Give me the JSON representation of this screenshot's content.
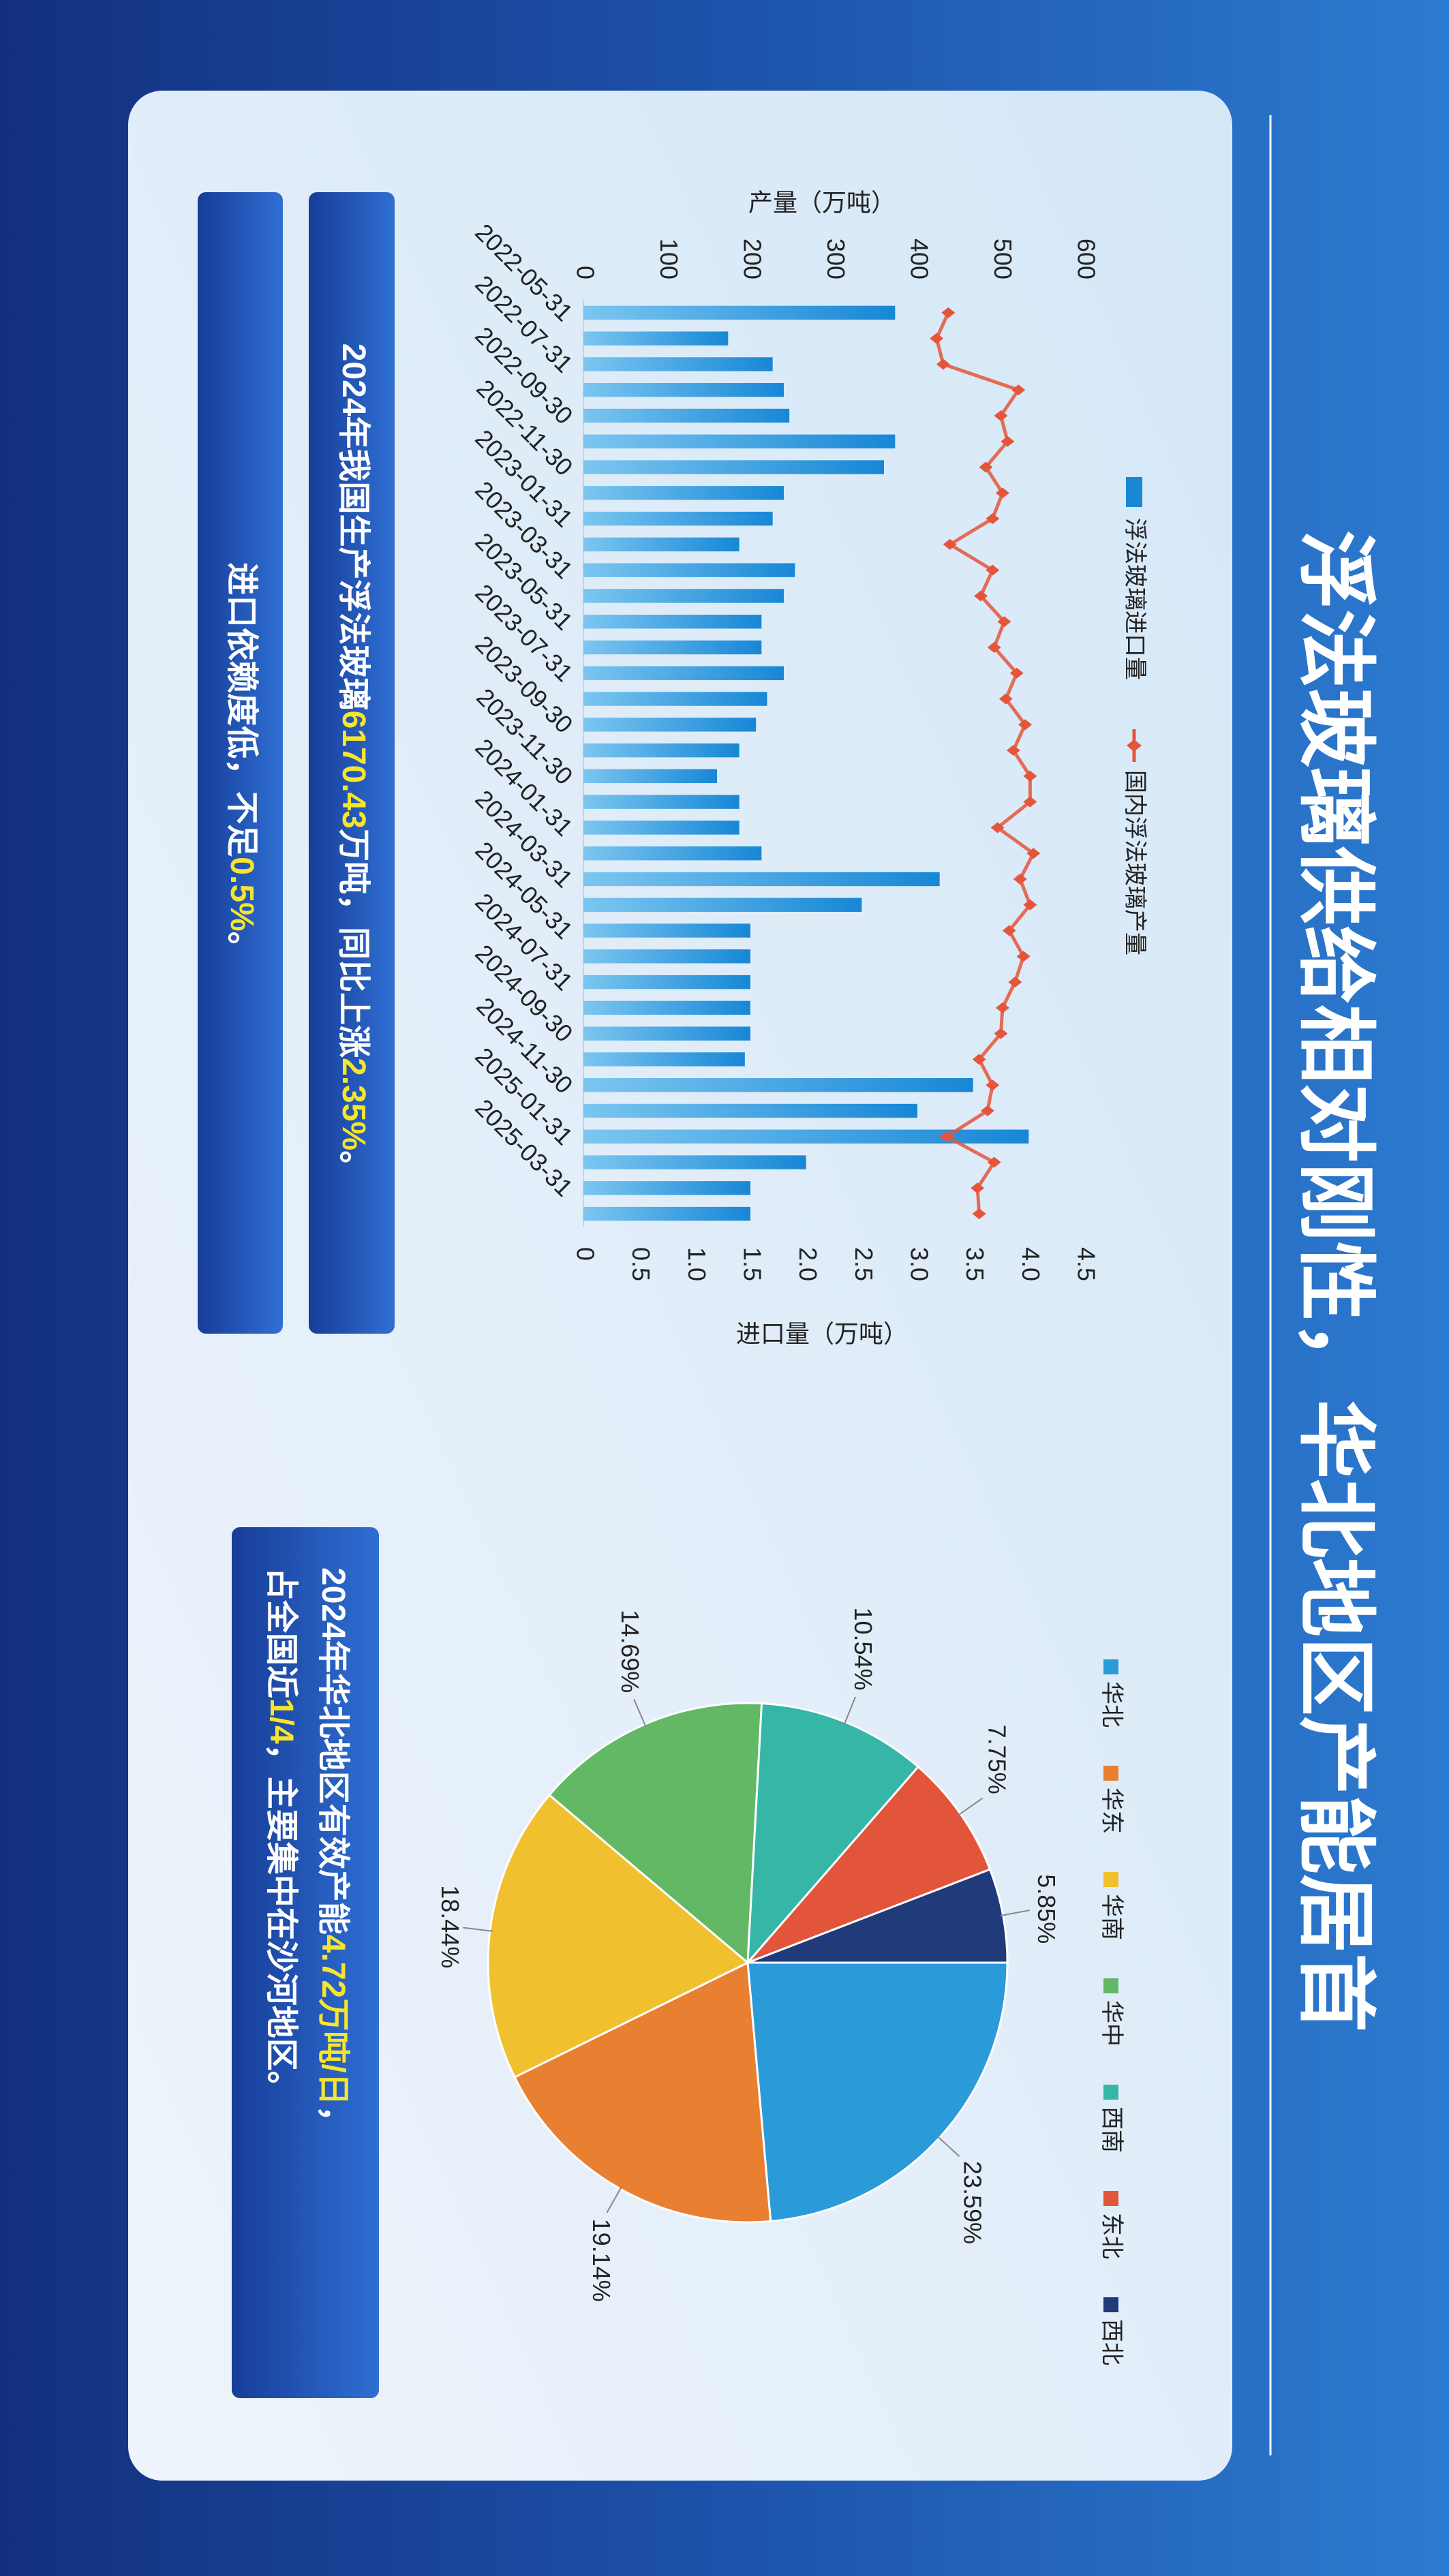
{
  "title": "浮法玻璃供给相对刚性，华北地区产能居首",
  "chart_data": [
    {
      "type": "combo",
      "categories": [
        "2022-05-31",
        null,
        "2022-07-31",
        null,
        "2022-09-30",
        null,
        "2022-11-30",
        null,
        "2023-01-31",
        null,
        "2023-03-31",
        null,
        "2023-05-31",
        null,
        "2023-07-31",
        null,
        "2023-09-30",
        null,
        "2023-11-30",
        null,
        "2024-01-31",
        null,
        "2024-03-31",
        null,
        "2024-05-31",
        null,
        "2024-07-31",
        null,
        "2024-09-30",
        null,
        "2024-11-30",
        null,
        "2025-01-31",
        null,
        "2025-03-31",
        null
      ],
      "ylabel": "产量（万吨）",
      "y2label": "进口量（万吨）",
      "ylim": [
        0,
        600
      ],
      "yticks": [
        0,
        100,
        200,
        300,
        400,
        500,
        600
      ],
      "y2lim": [
        0,
        4.5
      ],
      "y2ticks": [
        0,
        0.5,
        {
          "value": 1,
          "label": "1.0"
        },
        1.5,
        {
          "value": 2,
          "label": "2.0"
        },
        2.5,
        {
          "value": 3,
          "label": "3.0"
        },
        3.5,
        {
          "value": 4,
          "label": "4.0"
        },
        4.5
      ],
      "series": [
        {
          "name": "浮法玻璃进口量",
          "type": "bar",
          "axis": "y2",
          "color": "#1787d6",
          "values": [
            2.8,
            1.3,
            1.7,
            1.8,
            1.85,
            2.8,
            2.7,
            1.8,
            1.7,
            1.4,
            1.9,
            1.8,
            1.6,
            1.6,
            1.8,
            1.65,
            1.55,
            1.4,
            1.2,
            1.4,
            1.4,
            1.6,
            3.2,
            2.5,
            1.5,
            1.5,
            1.5,
            1.5,
            1.5,
            1.45,
            3.5,
            3.0,
            4.0,
            2.0,
            1.5,
            1.5
          ]
        },
        {
          "name": "国内浮法玻璃产量",
          "type": "line",
          "color": "#e5553a",
          "values": [
            437,
            423,
            431,
            521,
            500,
            508,
            482,
            502,
            490,
            439,
            490,
            476,
            504,
            492,
            519,
            506,
            529,
            515,
            535,
            535,
            496,
            539,
            523,
            535,
            510,
            527,
            517,
            502,
            500,
            474,
            490,
            484,
            435,
            492,
            472,
            474
          ]
        }
      ]
    },
    {
      "type": "pie",
      "categories": [
        "华北",
        "华东",
        "华南",
        "华中",
        "西南",
        "东北",
        "西北"
      ],
      "values": [
        23.59,
        19.14,
        18.44,
        14.69,
        10.54,
        7.75,
        5.85
      ],
      "value_labels": [
        "23.59%",
        "19.14%",
        "18.44%",
        "14.69%",
        "10.54%",
        "7.75%",
        "5.85%"
      ],
      "colors": [
        "#2b9ad9",
        "#e97f31",
        "#f1c02f",
        "#63b865",
        "#36b6a6",
        "#e2553a",
        "#203a7a"
      ]
    }
  ],
  "notes": [
    {
      "lines": [
        [
          {
            "text": "2024年我国生产浮法玻璃",
            "color": "#ffffff"
          },
          {
            "text": "6170.43",
            "color": "#f6e52a"
          },
          {
            "text": "万吨，同比上涨",
            "color": "#ffffff"
          },
          {
            "text": "2.35%",
            "color": "#f6e52a"
          },
          {
            "text": "。",
            "color": "#ffffff"
          }
        ]
      ]
    },
    {
      "lines": [
        [
          {
            "text": "进口依赖度低，不足",
            "color": "#ffffff"
          },
          {
            "text": "0.5%",
            "color": "#f6e52a"
          },
          {
            "text": "。",
            "color": "#ffffff"
          }
        ]
      ]
    },
    {
      "lines": [
        [
          {
            "text": "2024年华北地区有效产能",
            "color": "#ffffff"
          },
          {
            "text": "4.72万吨/日",
            "color": "#f6e52a"
          },
          {
            "text": "，",
            "color": "#ffffff"
          }
        ],
        [
          {
            "text": "占全国近",
            "color": "#ffffff"
          },
          {
            "text": "1/4",
            "color": "#f6e52a"
          },
          {
            "text": "，主要集中在沙河地区。",
            "color": "#ffffff"
          }
        ]
      ]
    }
  ]
}
